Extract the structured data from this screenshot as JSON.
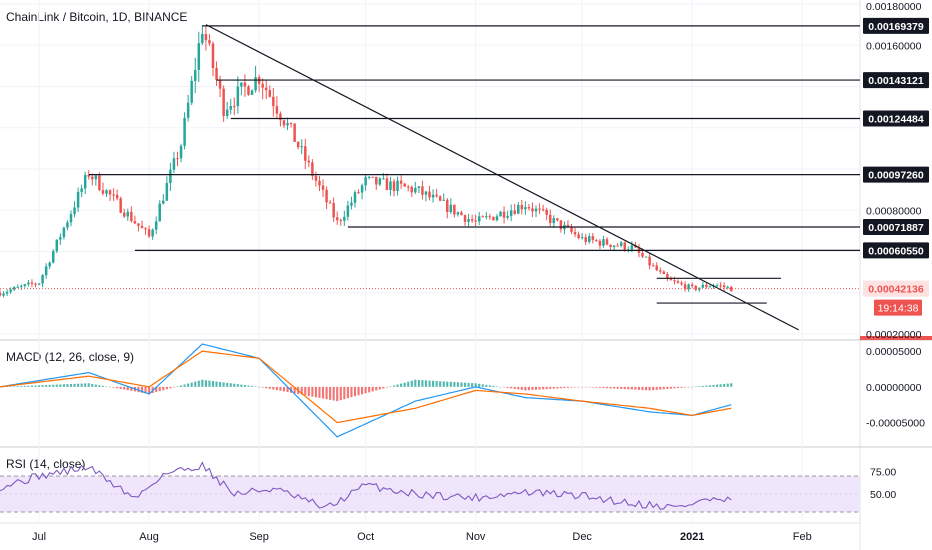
{
  "chart_title": "ChainLink / Bitcoin, 1D, BINANCE",
  "colors": {
    "up": "#26a69a",
    "down": "#ef5350",
    "line": "#131722",
    "macd_line": "#2196f3",
    "signal_line": "#ff6d00",
    "rsi_line": "#7e57c2",
    "rsi_band": "#f0e6fb",
    "price_label": "#ef5350"
  },
  "time_axis": {
    "labels": [
      "Jul",
      "Aug",
      "Sep",
      "Oct",
      "Nov",
      "Dec",
      "2021",
      "Feb"
    ]
  },
  "price_axis": {
    "ticks": [
      "0.00180000",
      "0.00160000",
      "0.00080000",
      "0.00020000"
    ]
  },
  "levels": [
    {
      "value": 0.00169379,
      "label": "0.00169379"
    },
    {
      "value": 0.00143121,
      "label": "0.00143121"
    },
    {
      "value": 0.00124484,
      "label": "0.00124484"
    },
    {
      "value": 0.0009726,
      "label": "0.00097260"
    },
    {
      "value": 0.00071887,
      "label": "0.00071887"
    },
    {
      "value": 0.0006055,
      "label": "0.00060550"
    }
  ],
  "current_price": {
    "label": "0.00042136",
    "countdown": "19:14:38"
  },
  "macd": {
    "title": "MACD (12, 26, close, 9)",
    "ticks": [
      "0.00005000",
      "0.00000000",
      "-0.00005000"
    ]
  },
  "rsi": {
    "title": "RSI (14, close)",
    "ticks": [
      "75.00",
      "50.00"
    ]
  },
  "chart_data": {
    "type": "candlestick",
    "title": "ChainLink / Bitcoin, 1D, BINANCE",
    "x": [
      "2020-06-20",
      "2020-07-01",
      "2020-07-15",
      "2020-08-01",
      "2020-08-10",
      "2020-08-16",
      "2020-08-22",
      "2020-09-01",
      "2020-09-10",
      "2020-09-23",
      "2020-10-01",
      "2020-10-15",
      "2020-11-01",
      "2020-11-15",
      "2020-12-01",
      "2020-12-15",
      "2020-12-25",
      "2021-01-01",
      "2021-01-07",
      "2021-01-12"
    ],
    "close": [
      0.0004,
      0.00045,
      0.00098,
      0.00067,
      0.00112,
      0.00169,
      0.0013,
      0.00145,
      0.00118,
      0.00074,
      0.00094,
      0.0009,
      0.00074,
      0.00083,
      0.00066,
      0.00062,
      0.00046,
      0.00042,
      0.00044,
      0.00042
    ],
    "ylim": [
      0.0002,
      0.0018
    ],
    "annotations": [
      {
        "type": "trendline",
        "from": [
          "2020-08-17",
          0.0017
        ],
        "to": [
          "2021-01-31",
          0.00022
        ]
      },
      {
        "type": "range",
        "top": 0.00047,
        "bottom": 0.00035
      }
    ],
    "macd": {
      "x": [
        "2020-06-20",
        "2020-07-15",
        "2020-08-01",
        "2020-08-16",
        "2020-09-01",
        "2020-09-23",
        "2020-10-15",
        "2020-11-01",
        "2020-11-15",
        "2020-12-01",
        "2020-12-20",
        "2021-01-01",
        "2021-01-12"
      ],
      "macd": [
        0.0,
        2e-05,
        -1e-05,
        6e-05,
        4e-05,
        -7e-05,
        -2e-05,
        0.0,
        -1.5e-05,
        -2e-05,
        -3.5e-05,
        -4e-05,
        -2.5e-05
      ],
      "signal": [
        0.0,
        1.5e-05,
        0.0,
        5e-05,
        4e-05,
        -5e-05,
        -3e-05,
        -5e-06,
        -1e-05,
        -2e-05,
        -3e-05,
        -4e-05,
        -3e-05
      ],
      "ylim": [
        -8e-05,
        6e-05
      ]
    },
    "rsi_series": {
      "x": [
        "2020-06-20",
        "2020-07-01",
        "2020-07-15",
        "2020-07-28",
        "2020-08-05",
        "2020-08-16",
        "2020-08-25",
        "2020-09-05",
        "2020-09-20",
        "2020-10-01",
        "2020-10-15",
        "2020-11-01",
        "2020-11-15",
        "2020-12-01",
        "2020-12-15",
        "2020-12-28",
        "2021-01-05",
        "2021-01-12"
      ],
      "values": [
        58,
        70,
        80,
        45,
        72,
        82,
        50,
        56,
        34,
        60,
        50,
        46,
        52,
        48,
        40,
        35,
        44,
        42
      ],
      "ylim": [
        20,
        100
      ],
      "bands": [
        70,
        30
      ]
    }
  }
}
